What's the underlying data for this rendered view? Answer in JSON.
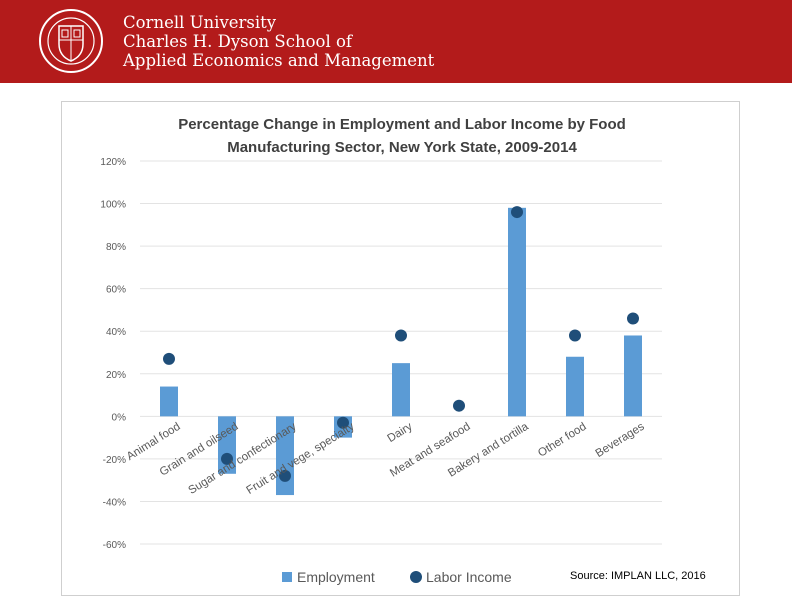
{
  "header": {
    "line1": "Cornell University",
    "line2": "Charles H. Dyson School of",
    "line3": "Applied Economics and Management",
    "brand_color": "#b31b1b"
  },
  "source_text": "Source: IMPLAN LLC, 2016",
  "chart_data": {
    "type": "bar",
    "title_lines": [
      "Percentage Change in Employment and Labor Income by Food",
      "Manufacturing Sector, New York State, 2009-2014"
    ],
    "categories": [
      "Animal food",
      "Grain and oilseed",
      "Sugar and confectionary",
      "Fruit and vege, specialty",
      "Dairy",
      "Meat and seafood",
      "Bakery and tortilla",
      "Other food",
      "Beverages"
    ],
    "series": [
      {
        "name": "Employment",
        "type": "bar",
        "color": "#5b9bd5",
        "values": [
          14,
          -27,
          -37,
          -10,
          25,
          0,
          98,
          28,
          38
        ]
      },
      {
        "name": "Labor Income",
        "type": "scatter",
        "color": "#1f4e79",
        "values": [
          27,
          -20,
          -28,
          -3,
          38,
          5,
          96,
          38,
          46
        ]
      }
    ],
    "y_ticks": [
      "120%",
      "100%",
      "80%",
      "60%",
      "40%",
      "20%",
      "0%",
      "-20%",
      "-40%",
      "-60%"
    ],
    "ylim": [
      -60,
      120
    ],
    "grid": true,
    "legend_position": "bottom"
  }
}
